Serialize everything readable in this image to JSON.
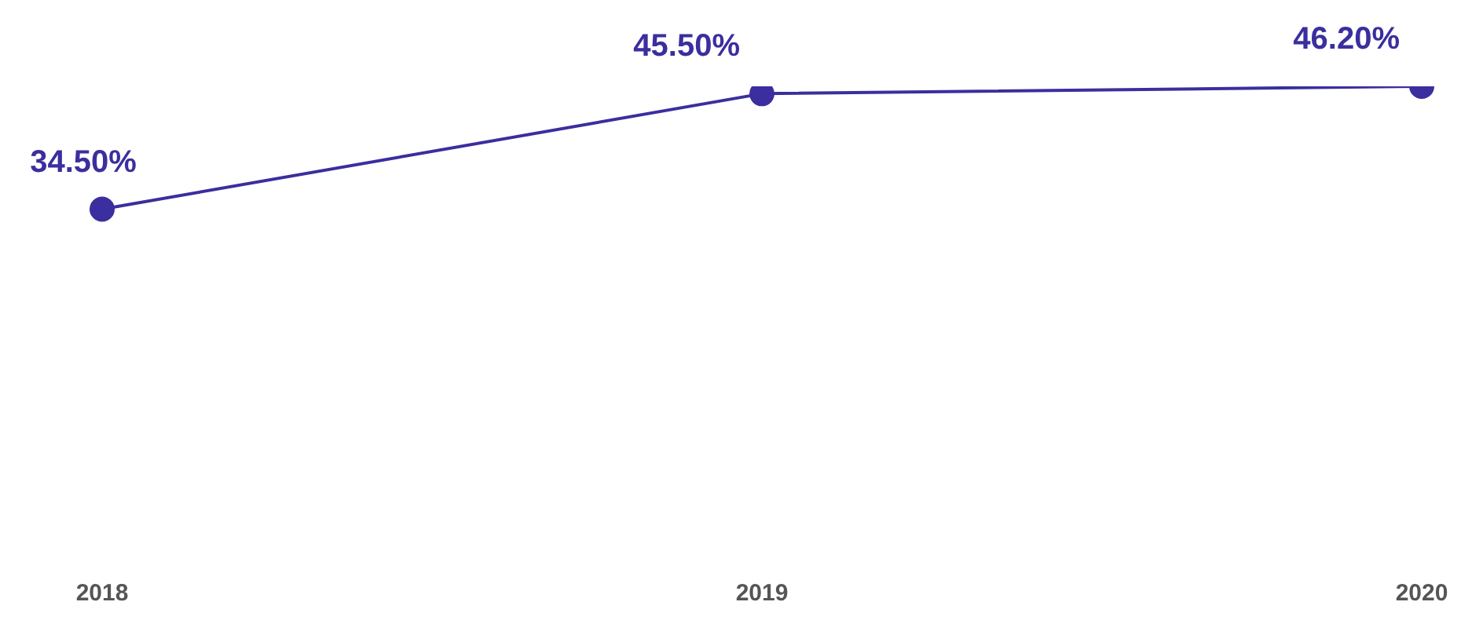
{
  "chart_data": {
    "type": "line",
    "categories": [
      "2018",
      "2019",
      "2020"
    ],
    "series": [
      {
        "color": "#3b2e9e",
        "values": [
          34.5,
          45.5,
          46.2
        ],
        "value_labels": [
          "34.50%",
          "45.50%",
          "46.20%"
        ]
      }
    ],
    "tick_labels": "x",
    "marker": "circle",
    "line_style": "solid"
  }
}
